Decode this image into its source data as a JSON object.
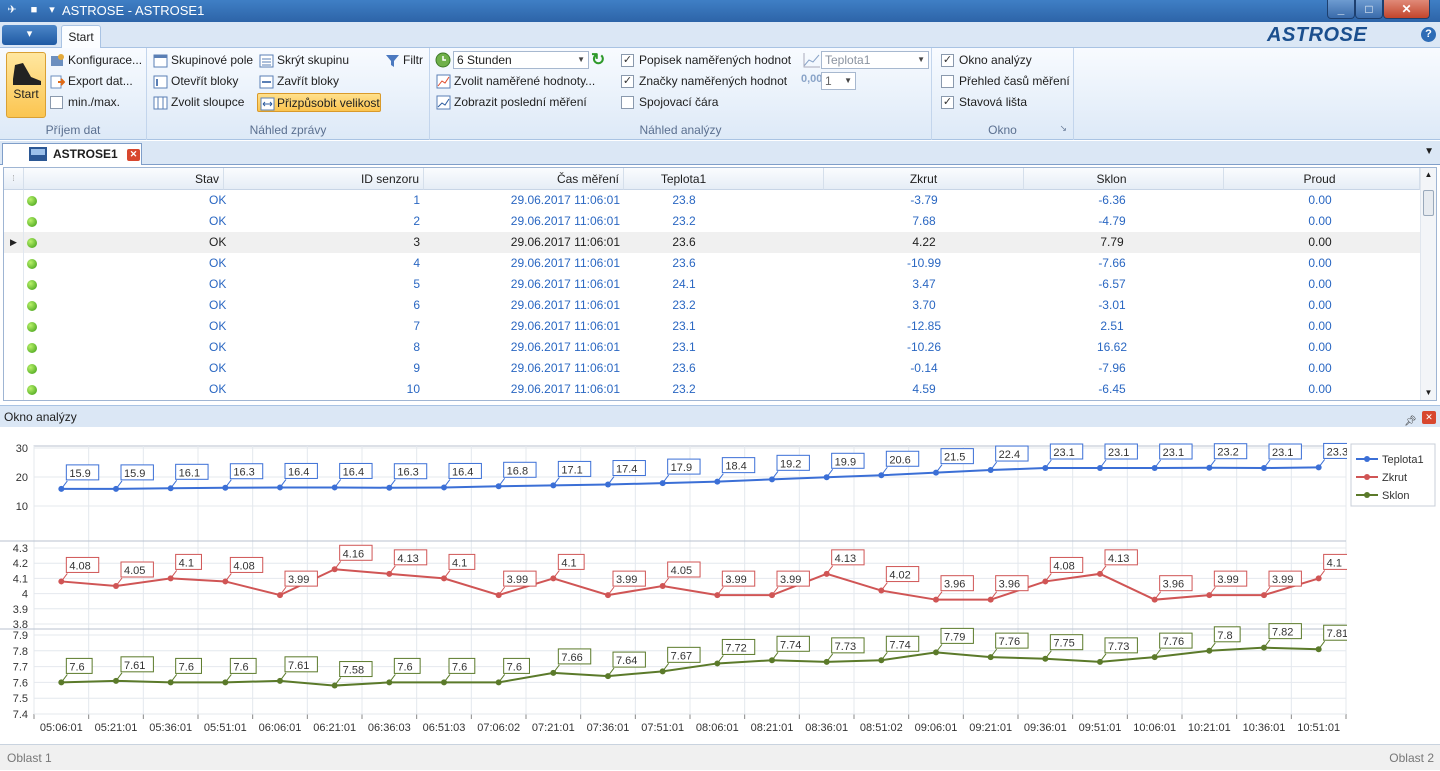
{
  "window": {
    "title": "ASTROSE - ASTROSE1"
  },
  "tabs": {
    "app_menu": "▾",
    "start": "Start"
  },
  "brand": "ASTROSE",
  "ribbon": {
    "start_label": "Start",
    "group1": {
      "label": "Příjem dat",
      "items": [
        "Konfigurace...",
        "Export dat...",
        "min./max."
      ]
    },
    "group2": {
      "label": "Náhled zprávy",
      "items": [
        "Skupinové pole",
        "Skrýt skupinu",
        "Filtr",
        "Otevřít bloky",
        "Zavřít bloky",
        "Zvolit sloupce",
        "Přizpůsobit velikost"
      ]
    },
    "group3": {
      "label": "Náhled analýzy",
      "timespan": "6 Stunden",
      "choose_values": "Zvolit naměřené hodnoty...",
      "show_last": "Zobrazit poslední měření",
      "checks": [
        {
          "label": "Popisek naměřených hodnot",
          "checked": true
        },
        {
          "label": "Značky naměřených hodnot",
          "checked": true
        },
        {
          "label": "Spojovací čára",
          "checked": false
        }
      ],
      "series_select": "Teplota1",
      "decimals": "1",
      "decimals_icon": "0,00"
    },
    "group4": {
      "label": "Okno",
      "checks": [
        {
          "label": "Okno analýzy",
          "checked": true
        },
        {
          "label": "Přehled časů měření",
          "checked": false
        },
        {
          "label": "Stavová lišta",
          "checked": true
        }
      ]
    }
  },
  "document_tab": "ASTROSE1",
  "grid": {
    "columns": [
      "Stav",
      "ID senzoru",
      "Čas měření",
      "Teplota1",
      "Zkrut",
      "Sklon",
      "Proud"
    ],
    "current_row": 2,
    "rows": [
      [
        "OK",
        "1",
        "29.06.2017 11:06:01",
        "23.8",
        "-3.79",
        "-6.36",
        "0.00"
      ],
      [
        "OK",
        "2",
        "29.06.2017 11:06:01",
        "23.2",
        "7.68",
        "-4.79",
        "0.00"
      ],
      [
        "OK",
        "3",
        "29.06.2017 11:06:01",
        "23.6",
        "4.22",
        "7.79",
        "0.00"
      ],
      [
        "OK",
        "4",
        "29.06.2017 11:06:01",
        "23.6",
        "-10.99",
        "-7.66",
        "0.00"
      ],
      [
        "OK",
        "5",
        "29.06.2017 11:06:01",
        "24.1",
        "3.47",
        "-6.57",
        "0.00"
      ],
      [
        "OK",
        "6",
        "29.06.2017 11:06:01",
        "23.2",
        "3.70",
        "-3.01",
        "0.00"
      ],
      [
        "OK",
        "7",
        "29.06.2017 11:06:01",
        "23.1",
        "-12.85",
        "2.51",
        "0.00"
      ],
      [
        "OK",
        "8",
        "29.06.2017 11:06:01",
        "23.1",
        "-10.26",
        "16.62",
        "0.00"
      ],
      [
        "OK",
        "9",
        "29.06.2017 11:06:01",
        "23.6",
        "-0.14",
        "-7.96",
        "0.00"
      ],
      [
        "OK",
        "10",
        "29.06.2017 11:06:01",
        "23.2",
        "4.59",
        "-6.45",
        "0.00"
      ]
    ]
  },
  "analysis": {
    "title": "Okno analýzy"
  },
  "chart_data": {
    "type": "line",
    "x": [
      "05:06:01",
      "05:21:01",
      "05:36:01",
      "05:51:01",
      "06:06:01",
      "06:21:01",
      "06:36:03",
      "06:51:03",
      "07:06:02",
      "07:21:01",
      "07:36:01",
      "07:51:01",
      "08:06:01",
      "08:21:01",
      "08:36:01",
      "08:51:02",
      "09:06:01",
      "09:21:01",
      "09:36:01",
      "09:51:01",
      "10:06:01",
      "10:21:01",
      "10:36:01",
      "10:51:01"
    ],
    "legend_position": "top-right",
    "grid": true,
    "panels": [
      {
        "name": "Teplota1",
        "color": "#3b6fd6",
        "yticks": [
          "30",
          "20",
          "10"
        ],
        "ylim": [
          0,
          30
        ],
        "values": [
          15.9,
          15.9,
          16.1,
          16.3,
          16.4,
          16.4,
          16.3,
          16.4,
          16.8,
          17.1,
          17.4,
          17.9,
          18.4,
          19.2,
          19.9,
          20.6,
          21.5,
          22.4,
          23.1,
          23.1,
          23.1,
          23.2,
          23.1,
          23.3
        ]
      },
      {
        "name": "Zkrut",
        "color": "#d05555",
        "yticks": [
          "4.3",
          "4.2",
          "4.1",
          "4",
          "3.9",
          "3.8"
        ],
        "ylim": [
          3.8,
          4.3
        ],
        "values": [
          4.08,
          4.05,
          4.1,
          4.08,
          3.99,
          4.16,
          4.13,
          4.1,
          3.99,
          4.1,
          3.99,
          4.05,
          3.99,
          3.99,
          4.13,
          4.02,
          3.96,
          3.96,
          4.08,
          4.13,
          3.96,
          3.99,
          3.99,
          4.1
        ]
      },
      {
        "name": "Sklon",
        "color": "#5b7a2a",
        "yticks": [
          "7.9",
          "7.8",
          "7.7",
          "7.6",
          "7.5",
          "7.4"
        ],
        "ylim": [
          7.4,
          7.9
        ],
        "values": [
          7.6,
          7.61,
          7.6,
          7.6,
          7.61,
          7.58,
          7.6,
          7.6,
          7.6,
          7.66,
          7.64,
          7.67,
          7.72,
          7.74,
          7.73,
          7.74,
          7.79,
          7.76,
          7.75,
          7.73,
          7.76,
          7.8,
          7.82,
          7.81
        ]
      }
    ]
  },
  "status": {
    "left": "Oblast 1",
    "right": "Oblast 2"
  },
  "colors": {
    "accent": "#2d64a8",
    "selected": "#fbc44f",
    "link": "#2a67c2"
  }
}
